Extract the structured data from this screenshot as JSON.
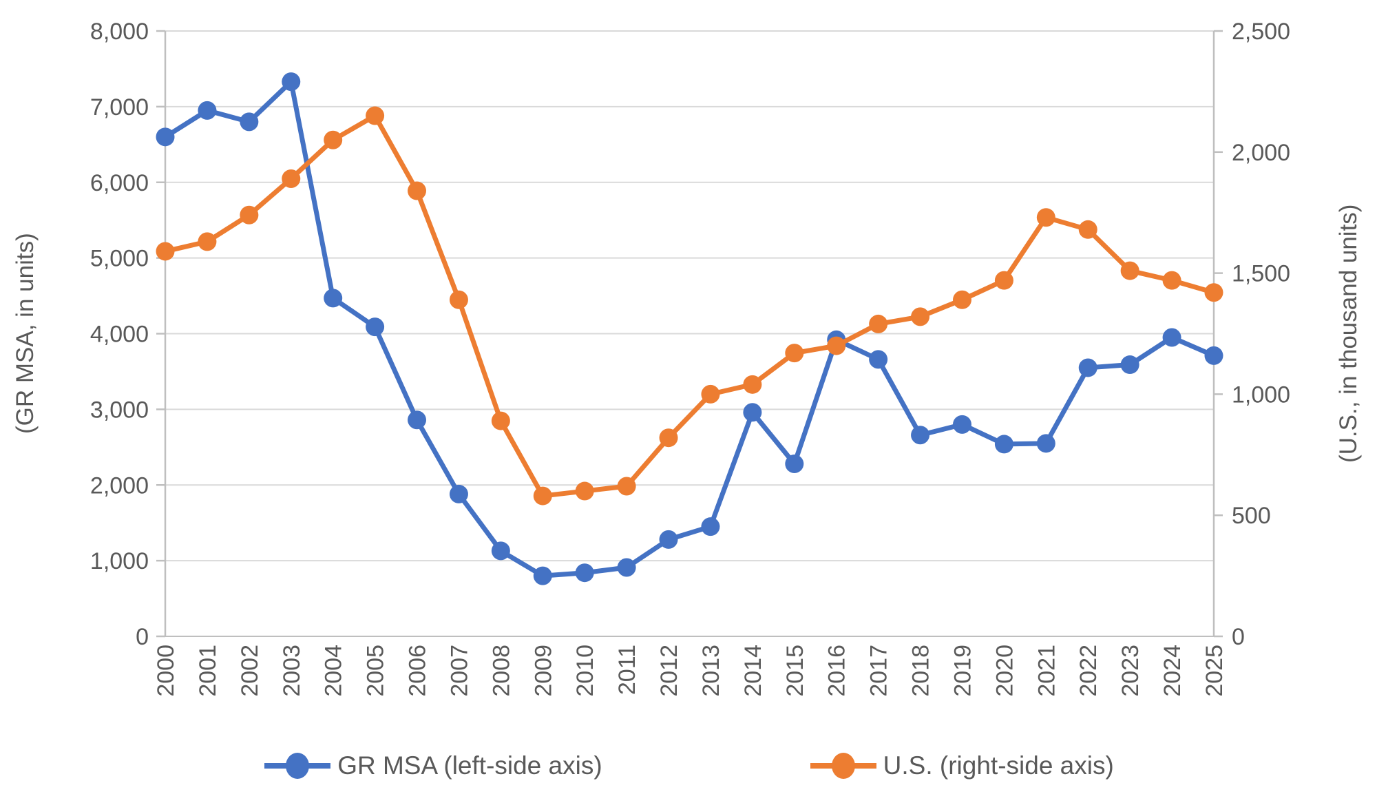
{
  "chart_data": {
    "type": "line",
    "categories": [
      "2000",
      "2001",
      "2002",
      "2003",
      "2004",
      "2005",
      "2006",
      "2007",
      "2008",
      "2009",
      "2010",
      "2011",
      "2012",
      "2013",
      "2014",
      "2015",
      "2016",
      "2017",
      "2018",
      "2019",
      "2020",
      "2021",
      "2022",
      "2023",
      "2024",
      "2025"
    ],
    "series": [
      {
        "name": "GR MSA (left-side axis)",
        "axis": "left",
        "color": "#4472C4",
        "values": [
          6600,
          6950,
          6800,
          7330,
          4470,
          4090,
          2860,
          1880,
          1130,
          800,
          840,
          910,
          1280,
          1450,
          2960,
          2280,
          3920,
          3660,
          2660,
          2800,
          2540,
          2550,
          3550,
          3590,
          3950,
          3710
        ]
      },
      {
        "name": "U.S. (right-side axis)",
        "axis": "right",
        "color": "#ED7D31",
        "values": [
          1590,
          1630,
          1740,
          1890,
          2050,
          2150,
          1840,
          1390,
          890,
          580,
          600,
          620,
          820,
          1000,
          1040,
          1170,
          1200,
          1290,
          1320,
          1390,
          1470,
          1730,
          1680,
          1510,
          1470,
          1420
        ]
      }
    ],
    "left_axis": {
      "title": "(GR MSA, in units)",
      "min": 0,
      "max": 8000,
      "step": 1000,
      "tick_labels": [
        "0",
        "1,000",
        "2,000",
        "3,000",
        "4,000",
        "5,000",
        "6,000",
        "7,000",
        "8,000"
      ]
    },
    "right_axis": {
      "title": "(U.S., in thousand units)",
      "min": 0,
      "max": 2500,
      "step": 500,
      "tick_labels": [
        "0",
        "500",
        "1,000",
        "1,500",
        "2,000",
        "2,500"
      ]
    },
    "grid": "horizontal",
    "legend_position": "bottom",
    "colors": {
      "gridline": "#D9D9D9",
      "axis_line": "#BFBFBF",
      "tick_text": "#595959",
      "legend_text": "#595959"
    }
  }
}
